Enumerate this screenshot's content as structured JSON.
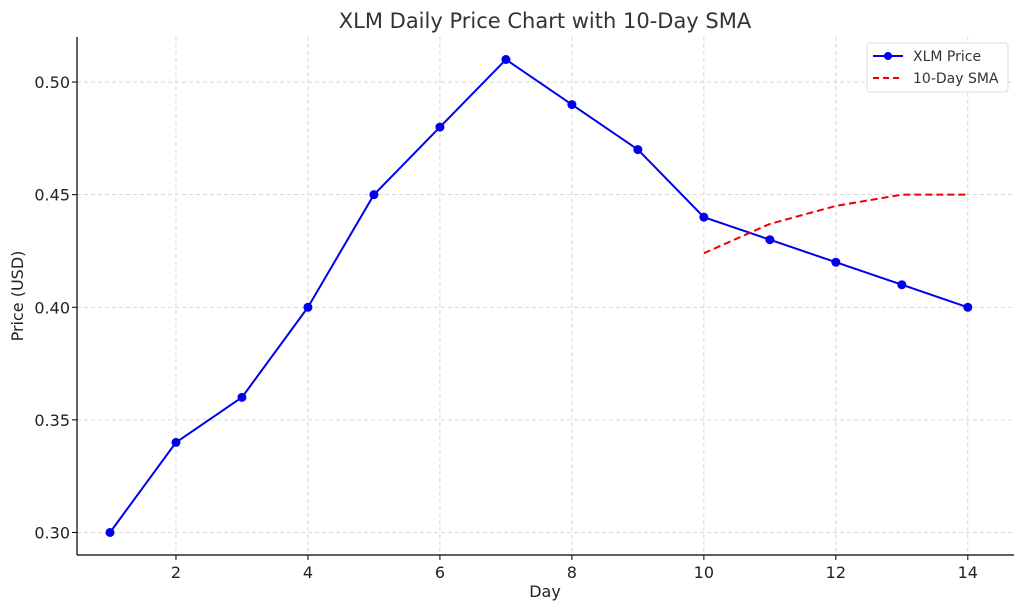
{
  "chart_data": {
    "type": "line",
    "title": "XLM Daily Price Chart with 10-Day SMA",
    "xlabel": "Day",
    "ylabel": "Price (USD)",
    "xlim": [
      0.5,
      14.7
    ],
    "ylim": [
      0.29,
      0.52
    ],
    "xticks": [
      2,
      4,
      6,
      8,
      10,
      12,
      14
    ],
    "yticks": [
      0.3,
      0.35,
      0.4,
      0.45,
      0.5
    ],
    "ytick_labels": [
      "0.30",
      "0.35",
      "0.40",
      "0.45",
      "0.50"
    ],
    "grid": true,
    "legend_position": "top-right",
    "series": [
      {
        "name": "XLM Price",
        "style": "solid-with-markers",
        "color": "#0000ee",
        "x": [
          1,
          2,
          3,
          4,
          5,
          6,
          7,
          8,
          9,
          10,
          11,
          12,
          13,
          14
        ],
        "values": [
          0.3,
          0.34,
          0.36,
          0.4,
          0.45,
          0.48,
          0.51,
          0.49,
          0.47,
          0.44,
          0.43,
          0.42,
          0.41,
          0.4
        ]
      },
      {
        "name": "10-Day SMA",
        "style": "dashed",
        "color": "#ee0000",
        "x": [
          10,
          11,
          12,
          13,
          14
        ],
        "values": [
          0.424,
          0.437,
          0.445,
          0.45,
          0.45
        ]
      }
    ]
  }
}
